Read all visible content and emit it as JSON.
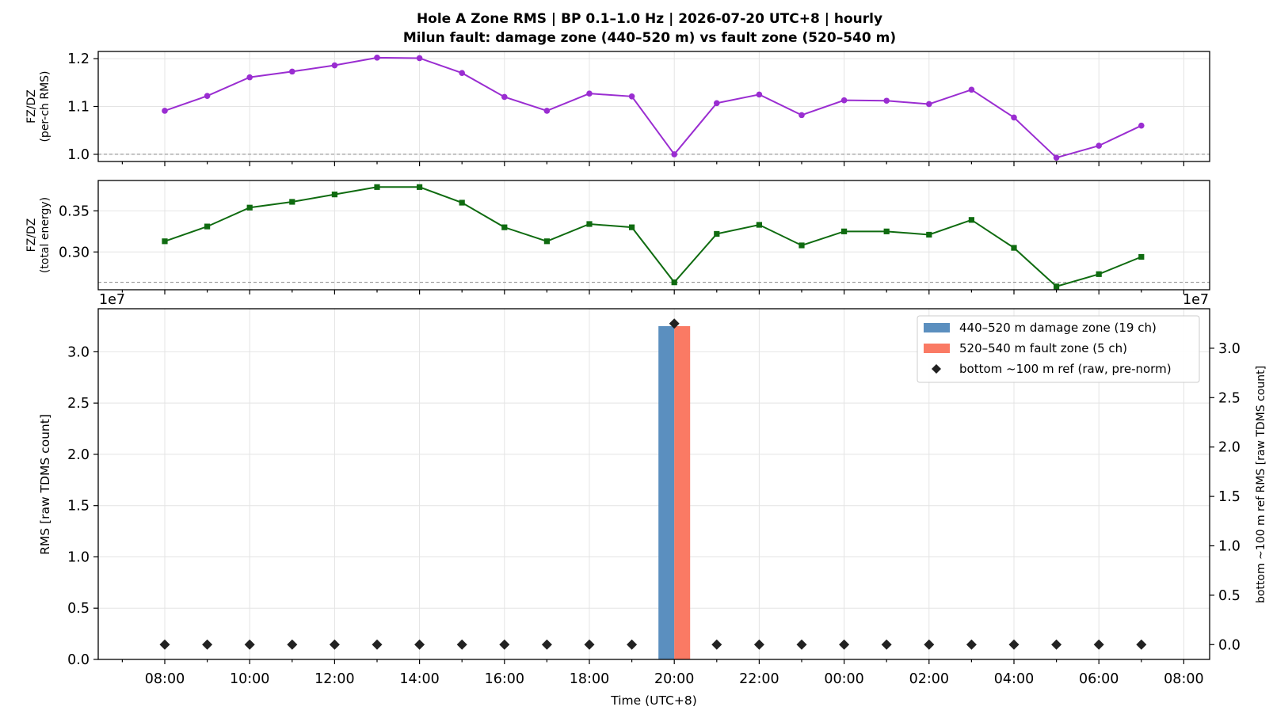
{
  "title": {
    "line1": "Hole A Zone RMS  |  BP 0.1–1.0 Hz  |  2026-07-20 UTC+8  |  hourly",
    "line2": "Milun fault: damage zone (440–520 m) vs fault zone (520–540 m)"
  },
  "colors": {
    "ratio_rms": "#9a2dd1",
    "ratio_energy": "#0f6b10",
    "damage_zone": "#5b8fbf",
    "fault_zone": "#fa7a64",
    "bottom_ref": "#222222",
    "reference_line": "#888888"
  },
  "chart_data": [
    {
      "type": "line",
      "ylabel": [
        "FZ/DZ",
        "(per-ch RMS)"
      ],
      "x": [
        "08:00",
        "09:00",
        "10:00",
        "11:00",
        "12:00",
        "13:00",
        "14:00",
        "15:00",
        "16:00",
        "17:00",
        "18:00",
        "19:00",
        "20:00",
        "21:00",
        "22:00",
        "23:00",
        "00:00",
        "01:00",
        "02:00",
        "03:00",
        "04:00",
        "05:00",
        "06:00",
        "07:00"
      ],
      "series": [
        {
          "values": [
            1.091,
            1.122,
            1.161,
            1.173,
            1.186,
            1.202,
            1.201,
            1.17,
            1.12,
            1.091,
            1.127,
            1.121,
            1.0,
            1.107,
            1.125,
            1.082,
            1.113,
            1.112,
            1.105,
            1.135,
            1.077,
            0.993,
            1.018,
            1.06
          ],
          "marker": "circle"
        }
      ],
      "reference_line": 1.0,
      "ylim": [
        0.985,
        1.215
      ],
      "yticks": [
        "1.0",
        "1.1",
        "1.2"
      ],
      "grid": true
    },
    {
      "type": "line",
      "ylabel": [
        "FZ/DZ",
        "(total energy)"
      ],
      "x": [
        "08:00",
        "09:00",
        "10:00",
        "11:00",
        "12:00",
        "13:00",
        "14:00",
        "15:00",
        "16:00",
        "17:00",
        "18:00",
        "19:00",
        "20:00",
        "21:00",
        "22:00",
        "23:00",
        "00:00",
        "01:00",
        "02:00",
        "03:00",
        "04:00",
        "05:00",
        "06:00",
        "07:00"
      ],
      "series": [
        {
          "values": [
            0.313,
            0.331,
            0.354,
            0.361,
            0.37,
            0.379,
            0.379,
            0.36,
            0.33,
            0.313,
            0.334,
            0.33,
            0.263,
            0.322,
            0.333,
            0.308,
            0.325,
            0.325,
            0.321,
            0.339,
            0.305,
            0.258,
            0.273,
            0.294
          ],
          "marker": "square"
        }
      ],
      "reference_line": 0.263,
      "ylim": [
        0.254,
        0.387
      ],
      "yticks": [
        "0.30",
        "0.35"
      ],
      "grid": true
    },
    {
      "type": "bar",
      "xlabel": "Time (UTC+8)",
      "ylabel": "RMS  [raw TDMS count]",
      "y2label": "bottom ~100 m ref RMS  [raw TDMS count]",
      "offset_left": "1e7",
      "offset_right": "1e7",
      "x": [
        "08:00",
        "09:00",
        "10:00",
        "11:00",
        "12:00",
        "13:00",
        "14:00",
        "15:00",
        "16:00",
        "17:00",
        "18:00",
        "19:00",
        "20:00",
        "21:00",
        "22:00",
        "23:00",
        "00:00",
        "01:00",
        "02:00",
        "03:00",
        "04:00",
        "05:00",
        "06:00",
        "07:00"
      ],
      "xticks": [
        "08:00",
        "10:00",
        "12:00",
        "14:00",
        "16:00",
        "18:00",
        "20:00",
        "22:00",
        "00:00",
        "02:00",
        "04:00",
        "06:00",
        "08:00"
      ],
      "series": [
        {
          "name": "440–520 m  damage zone (19 ch)",
          "kind": "bar",
          "values": [
            0,
            0,
            0,
            0,
            0,
            0,
            0,
            0,
            0,
            0,
            0,
            0,
            3.25,
            0,
            0,
            0,
            0,
            0,
            0,
            0,
            0,
            0,
            0,
            0
          ]
        },
        {
          "name": "520–540 m  fault zone (5 ch)",
          "kind": "bar",
          "values": [
            0,
            0,
            0,
            0,
            0,
            0,
            0,
            0,
            0,
            0,
            0,
            0,
            3.25,
            0,
            0,
            0,
            0,
            0,
            0,
            0,
            0,
            0,
            0,
            0
          ]
        },
        {
          "name": "bottom ~100 m ref (raw, pre-norm)",
          "kind": "scatter",
          "axis": "right",
          "values": [
            0,
            0,
            0,
            0,
            0,
            0,
            0,
            0,
            0,
            0,
            0,
            0,
            3.25,
            0,
            0,
            0,
            0,
            0,
            0,
            0,
            0,
            0,
            0,
            0
          ]
        }
      ],
      "ylim": [
        0,
        3.42
      ],
      "yticks": [
        "0.0",
        "0.5",
        "1.0",
        "1.5",
        "2.0",
        "2.5",
        "3.0"
      ],
      "y2lim": [
        -0.15,
        3.4
      ],
      "y2ticks": [
        "0.0",
        "0.5",
        "1.0",
        "1.5",
        "2.0",
        "2.5",
        "3.0"
      ],
      "legend": "top-right",
      "grid": true
    }
  ]
}
